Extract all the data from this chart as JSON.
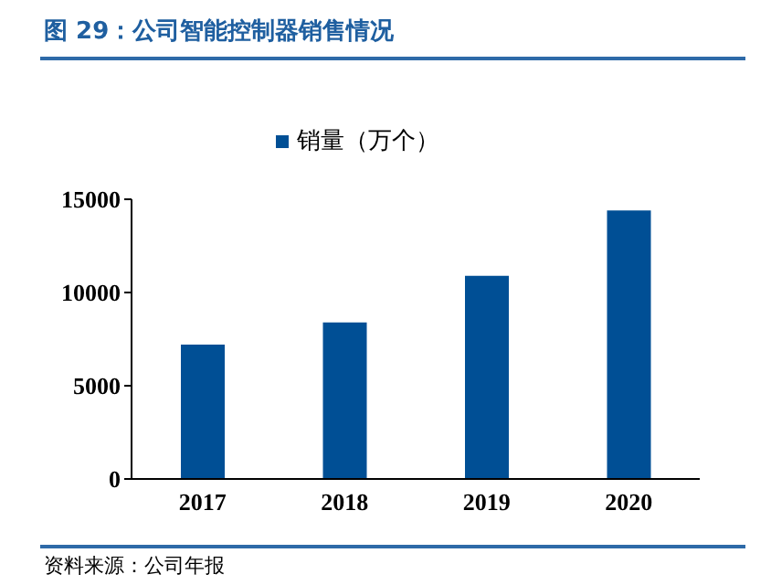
{
  "chart_data": {
    "type": "bar",
    "title": "图 29：公司智能控制器销售情况",
    "categories": [
      "2017",
      "2018",
      "2019",
      "2020"
    ],
    "series": [
      {
        "name": "销量（万个）",
        "color": "#004f95",
        "values": [
          7200,
          8400,
          10900,
          14400
        ]
      }
    ],
    "ylim": [
      0,
      15000
    ],
    "yticks": [
      0,
      5000,
      10000,
      15000
    ],
    "legend": "top",
    "annotations": [
      "资料来源：公司年报"
    ]
  }
}
